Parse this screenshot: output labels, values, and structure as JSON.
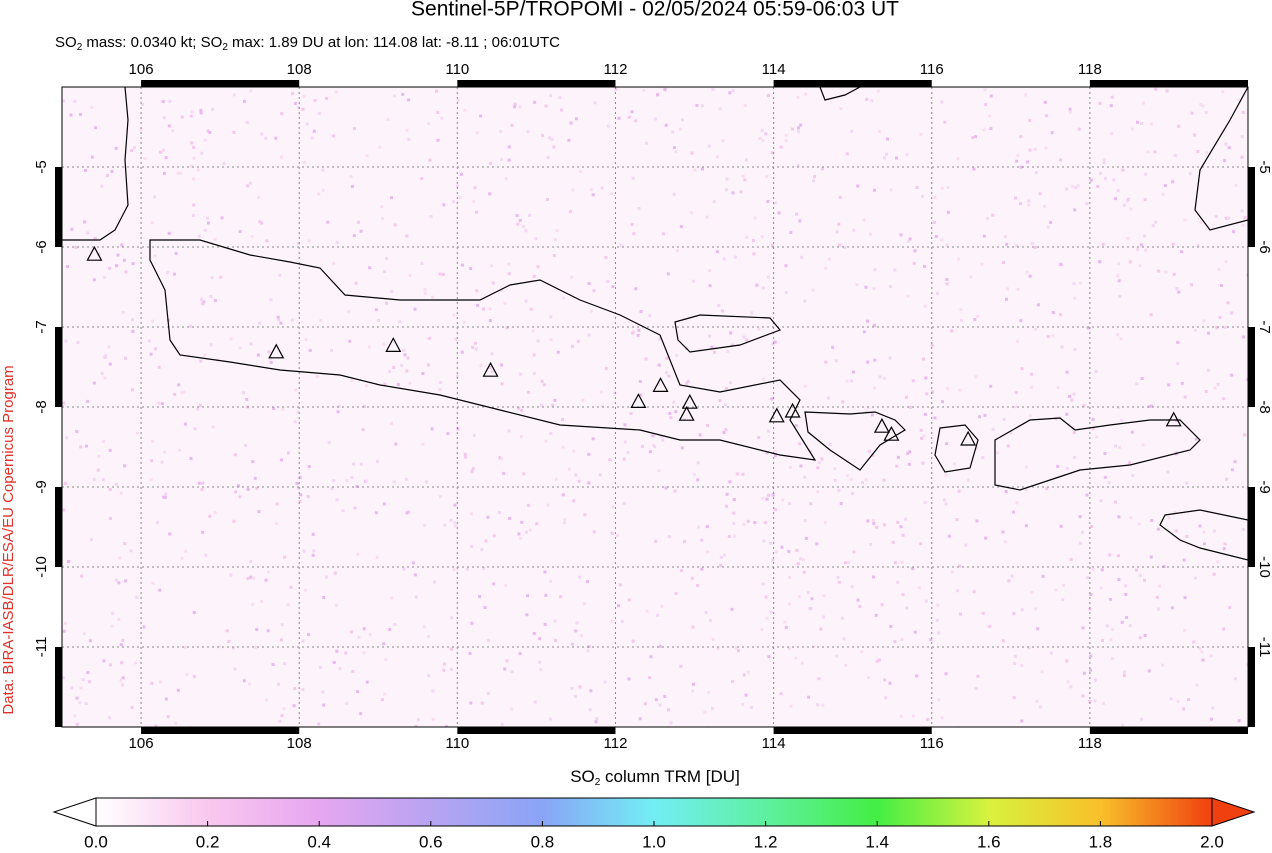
{
  "title": "Sentinel-5P/TROPOMI - 02/05/2024 05:59-06:03 UT",
  "subtitle": [
    "SO",
    "2",
    " mass: 0.0340 kt; SO",
    "2",
    " max: 1.89 DU at lon: 114.08 lat: -8.11 ; 06:01UTC"
  ],
  "credit": "Data: BIRA-IASB/DLR/ESA/EU Copernicus Program",
  "map": {
    "xlim": [
      105,
      120
    ],
    "ylim": [
      -12,
      -4
    ],
    "xticks": [
      106,
      108,
      110,
      112,
      114,
      116,
      118
    ],
    "yticks": [
      -5,
      -6,
      -7,
      -8,
      -9,
      -10,
      -11
    ],
    "grid": true,
    "volcanoes": [
      {
        "lon": 105.41,
        "lat": -6.09
      },
      {
        "lon": 107.71,
        "lat": -7.31
      },
      {
        "lon": 109.19,
        "lat": -7.23
      },
      {
        "lon": 110.42,
        "lat": -7.54
      },
      {
        "lon": 112.29,
        "lat": -7.93
      },
      {
        "lon": 112.57,
        "lat": -7.73
      },
      {
        "lon": 112.94,
        "lat": -7.94
      },
      {
        "lon": 112.9,
        "lat": -8.09
      },
      {
        "lon": 114.04,
        "lat": -8.11
      },
      {
        "lon": 114.24,
        "lat": -8.05
      },
      {
        "lon": 115.37,
        "lat": -8.24
      },
      {
        "lon": 115.49,
        "lat": -8.34
      },
      {
        "lon": 116.46,
        "lat": -8.4
      },
      {
        "lon": 119.06,
        "lat": -8.16
      }
    ]
  },
  "colorbar": {
    "label": [
      "SO",
      "2",
      " column TRM [DU]"
    ],
    "lim": [
      0,
      2
    ],
    "ticks": [
      {
        "value": 0,
        "label": "0.0"
      },
      {
        "value": 0.2,
        "label": "0.2"
      },
      {
        "value": 0.4,
        "label": "0.4"
      },
      {
        "value": 0.6,
        "label": "0.6"
      },
      {
        "value": 0.8,
        "label": "0.8"
      },
      {
        "value": 1,
        "label": "1.0"
      },
      {
        "value": 1.2,
        "label": "1.2"
      },
      {
        "value": 1.4,
        "label": "1.4"
      },
      {
        "value": 1.6,
        "label": "1.6"
      },
      {
        "value": 1.8,
        "label": "1.8"
      },
      {
        "value": 2,
        "label": "2.0"
      }
    ],
    "colors": [
      "#ffffff",
      "#f9c8ee",
      "#e7a6f0",
      "#b7a4f2",
      "#8aa4f6",
      "#72eef4",
      "#5ef0a0",
      "#44ee44",
      "#d8f23e",
      "#f8c02a",
      "#f04010"
    ]
  }
}
